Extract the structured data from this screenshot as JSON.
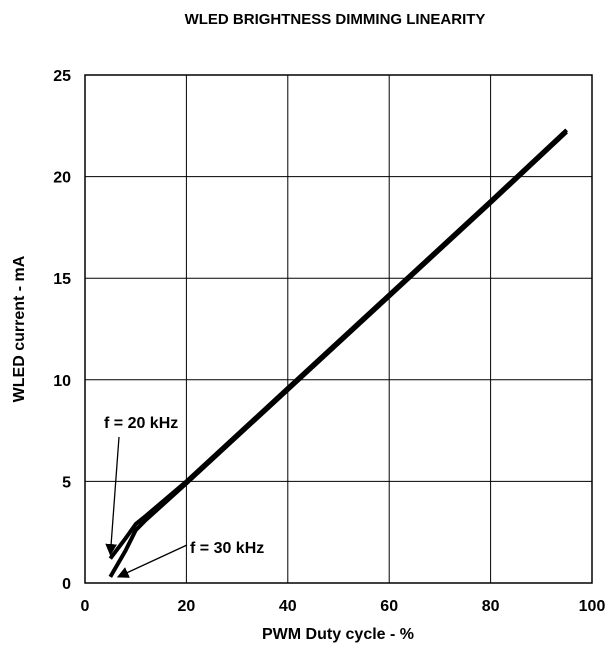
{
  "chart_data": {
    "type": "line",
    "title": "WLED BRIGHTNESS DIMMING LINEARITY",
    "xlabel": "PWM Duty cycle - %",
    "ylabel": "WLED current - mA",
    "xlim": [
      0,
      100
    ],
    "ylim": [
      0,
      25
    ],
    "xticks": [
      0,
      20,
      40,
      60,
      80,
      100
    ],
    "yticks": [
      0,
      5,
      10,
      15,
      20,
      25
    ],
    "grid": true,
    "legend": "none",
    "series": [
      {
        "name": "f = 20 kHz",
        "x": [
          5,
          8,
          10,
          12,
          20,
          40,
          60,
          80,
          95
        ],
        "y": [
          1.2,
          2.2,
          2.9,
          3.3,
          5.0,
          9.6,
          14.2,
          18.8,
          22.3
        ]
      },
      {
        "name": "f = 30 kHz",
        "x": [
          5,
          8,
          10,
          12,
          20,
          40,
          60,
          80,
          95
        ],
        "y": [
          0.3,
          1.6,
          2.6,
          3.1,
          4.9,
          9.5,
          14.1,
          18.7,
          22.2
        ]
      }
    ],
    "annotations": [
      {
        "text": "f = 20 kHz",
        "arrow_to": [
          5,
          1.4
        ]
      },
      {
        "text": "f = 30 kHz",
        "arrow_to": [
          6.5,
          0.3
        ]
      }
    ]
  }
}
